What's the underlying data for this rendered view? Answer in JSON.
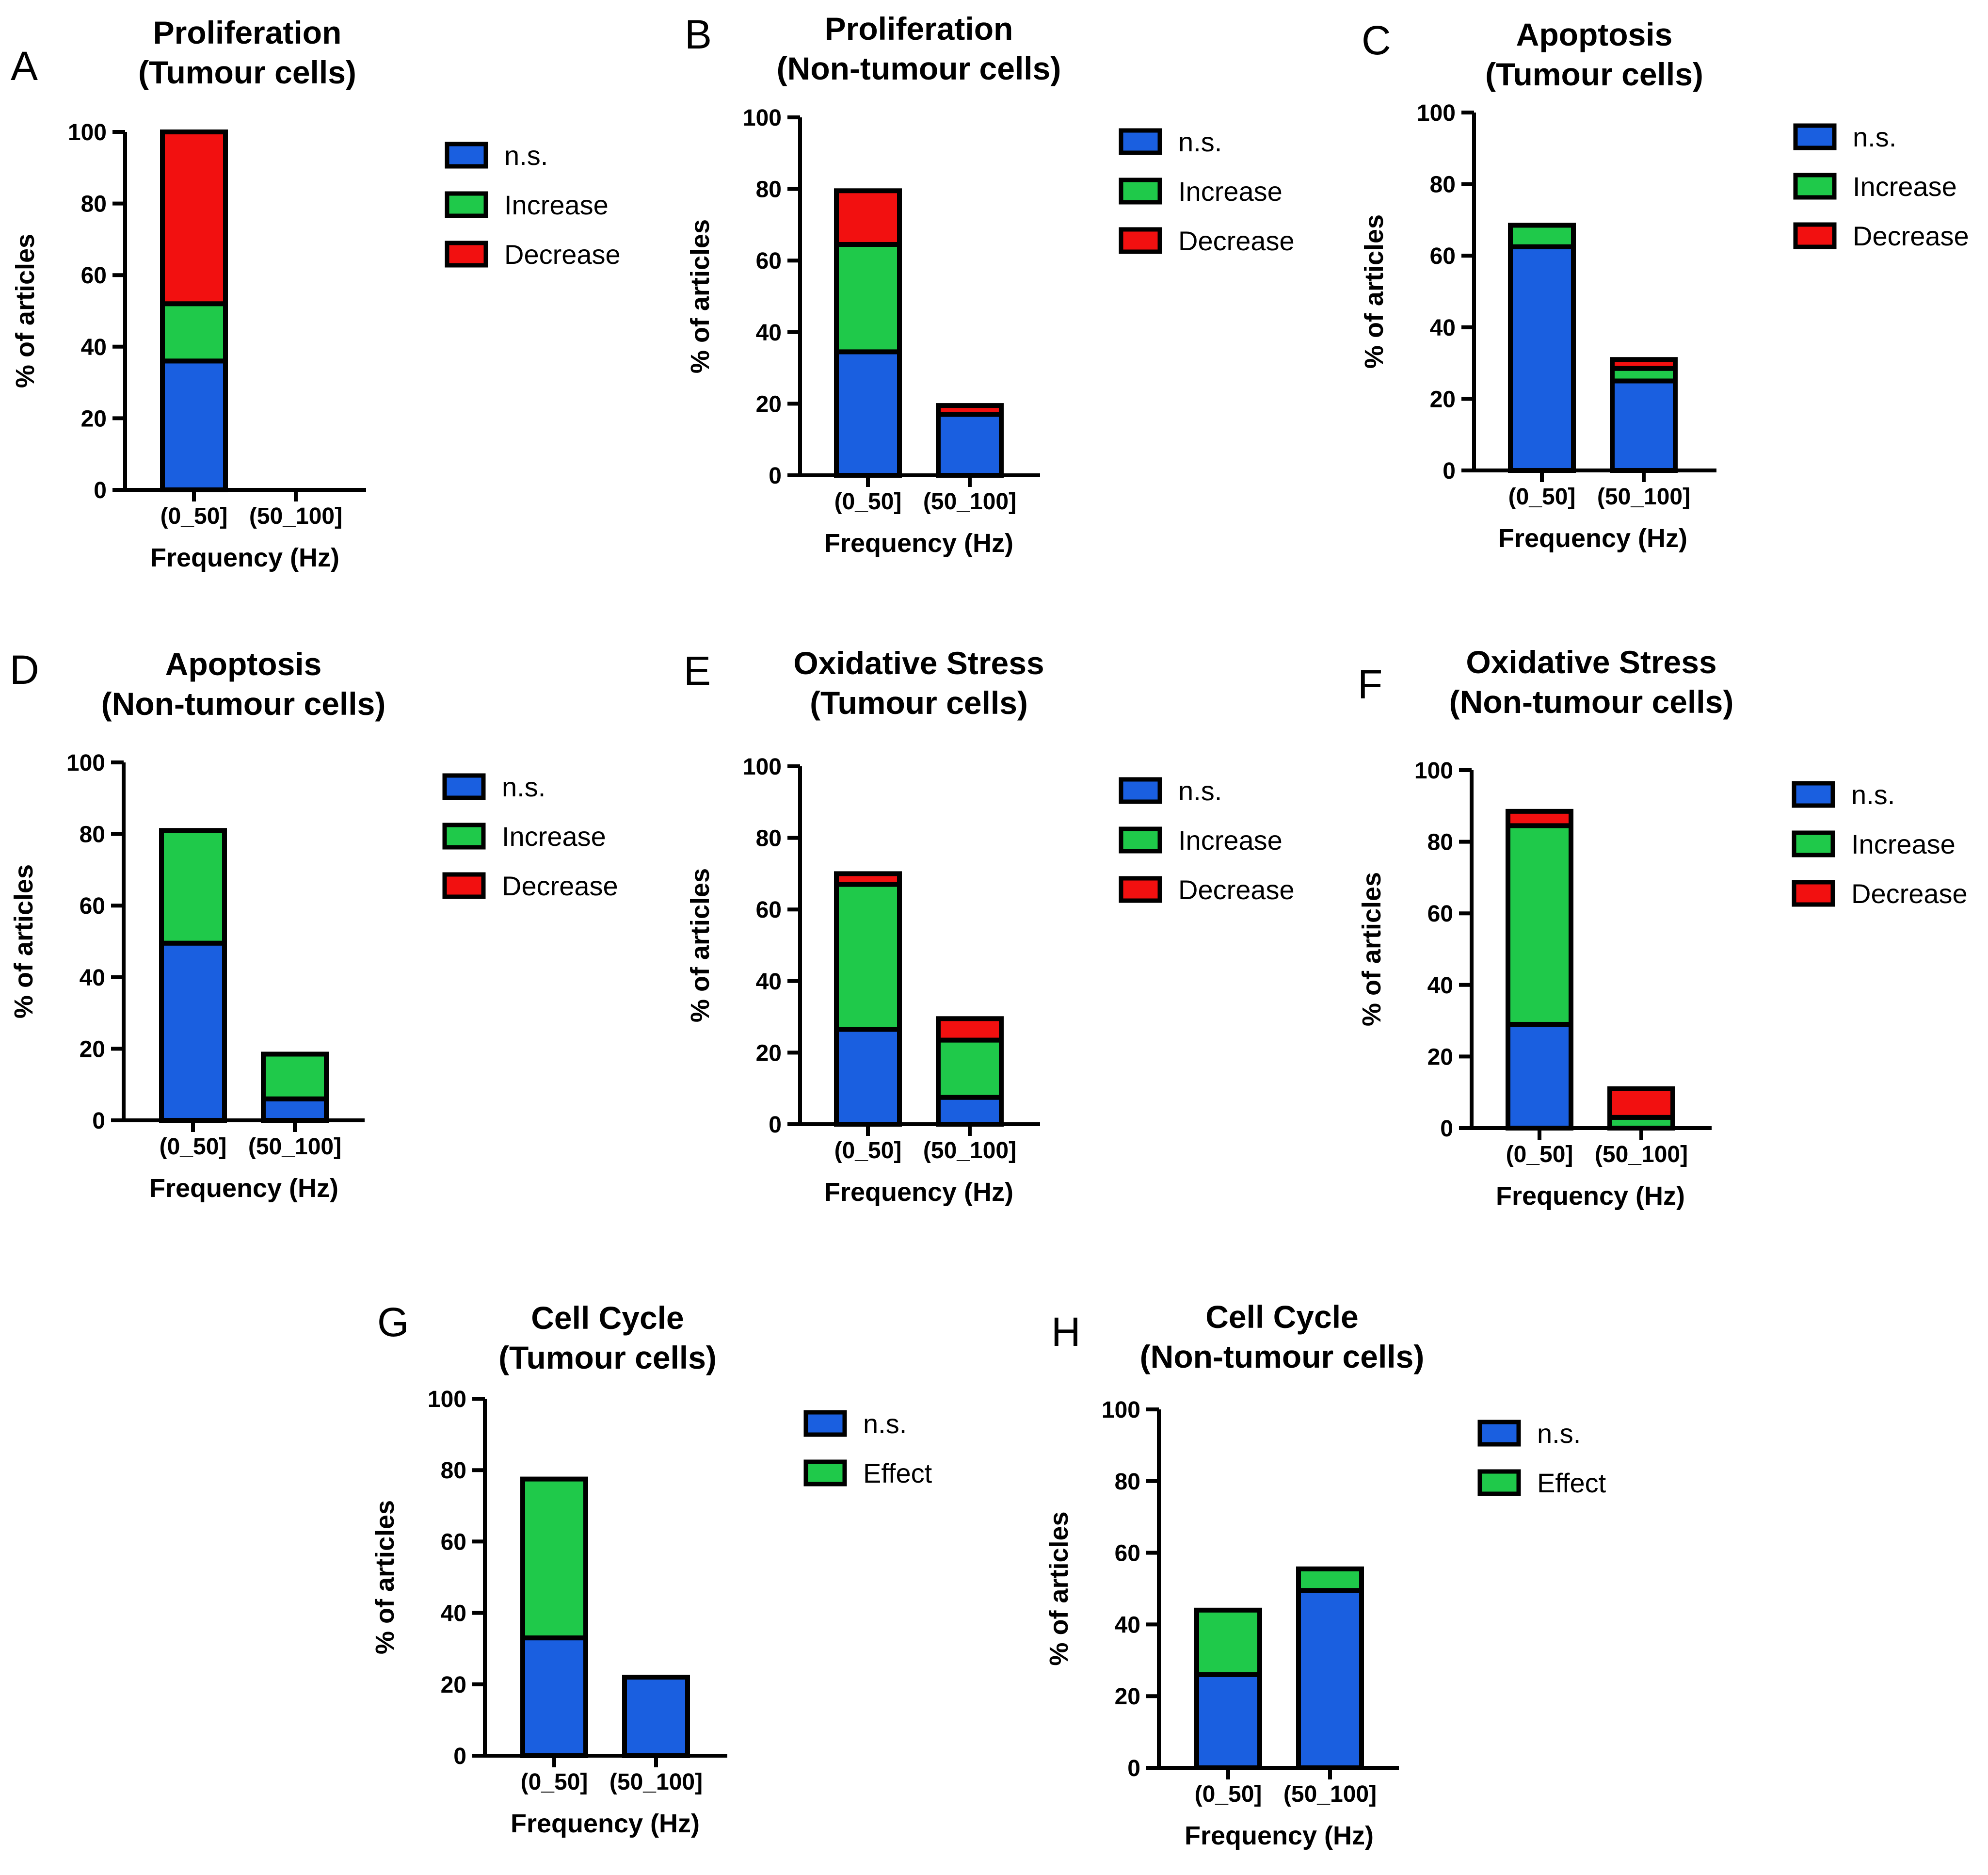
{
  "colors": {
    "ns": "#1a5fe0",
    "increase": "#1fc94a",
    "decrease": "#f21010",
    "effect": "#1fc94a"
  },
  "chart_data": [
    {
      "panel": "A",
      "type": "bar",
      "stacked": true,
      "title": [
        "Proliferation",
        "(Tumour cells)"
      ],
      "xlabel": "Frequency (Hz)",
      "ylabel": "% of articles",
      "ylim": [
        0,
        100
      ],
      "yticks": [
        0,
        20,
        40,
        60,
        80,
        100
      ],
      "categories": [
        "(0_50]",
        "(50_100]"
      ],
      "series": [
        {
          "name": "n.s.",
          "color_key": "ns",
          "values": [
            36,
            0
          ]
        },
        {
          "name": "Increase",
          "color_key": "increase",
          "values": [
            16,
            0
          ]
        },
        {
          "name": "Decrease",
          "color_key": "decrease",
          "values": [
            48,
            0
          ]
        }
      ],
      "legend": [
        "n.s.",
        "Increase",
        "Decrease"
      ],
      "legend_position": "right"
    },
    {
      "panel": "B",
      "type": "bar",
      "stacked": true,
      "title": [
        "Proliferation",
        "(Non-tumour cells)"
      ],
      "xlabel": "Frequency (Hz)",
      "ylabel": "% of articles",
      "ylim": [
        0,
        100
      ],
      "yticks": [
        0,
        20,
        40,
        60,
        80,
        100
      ],
      "categories": [
        "(0_50]",
        "(50_100]"
      ],
      "series": [
        {
          "name": "n.s.",
          "color_key": "ns",
          "values": [
            34.5,
            17
          ]
        },
        {
          "name": "Increase",
          "color_key": "increase",
          "values": [
            30,
            0
          ]
        },
        {
          "name": "Decrease",
          "color_key": "decrease",
          "values": [
            15,
            2.5
          ]
        }
      ],
      "legend": [
        "n.s.",
        "Increase",
        "Decrease"
      ],
      "legend_position": "right"
    },
    {
      "panel": "C",
      "type": "bar",
      "stacked": true,
      "title": [
        "Apoptosis",
        "(Tumour cells)"
      ],
      "xlabel": "Frequency (Hz)",
      "ylabel": "% of articles",
      "ylim": [
        0,
        100
      ],
      "yticks": [
        0,
        20,
        40,
        60,
        80,
        100
      ],
      "categories": [
        "(0_50]",
        "(50_100]"
      ],
      "series": [
        {
          "name": "n.s.",
          "color_key": "ns",
          "values": [
            62.5,
            25
          ]
        },
        {
          "name": "Increase",
          "color_key": "increase",
          "values": [
            6,
            3.5
          ]
        },
        {
          "name": "Decrease",
          "color_key": "decrease",
          "values": [
            0,
            2.5
          ]
        }
      ],
      "legend": [
        "n.s.",
        "Increase",
        "Decrease"
      ],
      "legend_position": "right"
    },
    {
      "panel": "D",
      "type": "bar",
      "stacked": true,
      "title": [
        "Apoptosis",
        "(Non-tumour cells)"
      ],
      "xlabel": "Frequency (Hz)",
      "ylabel": "% of articles",
      "ylim": [
        0,
        100
      ],
      "yticks": [
        0,
        20,
        40,
        60,
        80,
        100
      ],
      "categories": [
        "(0_50]",
        "(50_100]"
      ],
      "series": [
        {
          "name": "n.s.",
          "color_key": "ns",
          "values": [
            49.5,
            6
          ]
        },
        {
          "name": "Increase",
          "color_key": "increase",
          "values": [
            31.5,
            12.5
          ]
        },
        {
          "name": "Decrease",
          "color_key": "decrease",
          "values": [
            0,
            0
          ]
        }
      ],
      "legend": [
        "n.s.",
        "Increase",
        "Decrease"
      ],
      "legend_position": "right"
    },
    {
      "panel": "E",
      "type": "bar",
      "stacked": true,
      "title": [
        "Oxidative Stress",
        "(Tumour cells)"
      ],
      "xlabel": "Frequency (Hz)",
      "ylabel": "% of articles",
      "ylim": [
        0,
        100
      ],
      "yticks": [
        0,
        20,
        40,
        60,
        80,
        100
      ],
      "categories": [
        "(0_50]",
        "(50_100]"
      ],
      "series": [
        {
          "name": "n.s.",
          "color_key": "ns",
          "values": [
            26.5,
            7.5
          ]
        },
        {
          "name": "Increase",
          "color_key": "increase",
          "values": [
            40.5,
            16
          ]
        },
        {
          "name": "Decrease",
          "color_key": "decrease",
          "values": [
            3,
            6
          ]
        }
      ],
      "legend": [
        "n.s.",
        "Increase",
        "Decrease"
      ],
      "legend_position": "right"
    },
    {
      "panel": "F",
      "type": "bar",
      "stacked": true,
      "title": [
        "Oxidative Stress",
        "(Non-tumour cells)"
      ],
      "xlabel": "Frequency (Hz)",
      "ylabel": "% of articles",
      "ylim": [
        0,
        100
      ],
      "yticks": [
        0,
        20,
        40,
        60,
        80,
        100
      ],
      "categories": [
        "(0_50]",
        "(50_100]"
      ],
      "series": [
        {
          "name": "n.s.",
          "color_key": "ns",
          "values": [
            29,
            0
          ]
        },
        {
          "name": "Increase",
          "color_key": "increase",
          "values": [
            55.5,
            3
          ]
        },
        {
          "name": "Decrease",
          "color_key": "decrease",
          "values": [
            4,
            8
          ]
        }
      ],
      "legend": [
        "n.s.",
        "Increase",
        "Decrease"
      ],
      "legend_position": "right"
    },
    {
      "panel": "G",
      "type": "bar",
      "stacked": true,
      "title": [
        "Cell Cycle",
        "(Tumour cells)"
      ],
      "xlabel": "Frequency (Hz)",
      "ylabel": "% of articles",
      "ylim": [
        0,
        100
      ],
      "yticks": [
        0,
        20,
        40,
        60,
        80,
        100
      ],
      "categories": [
        "(0_50]",
        "(50_100]"
      ],
      "series": [
        {
          "name": "n.s.",
          "color_key": "ns",
          "values": [
            33,
            22
          ]
        },
        {
          "name": "Effect",
          "color_key": "effect",
          "values": [
            44.5,
            0
          ]
        }
      ],
      "legend": [
        "n.s.",
        "Effect"
      ],
      "legend_position": "right"
    },
    {
      "panel": "H",
      "type": "bar",
      "stacked": true,
      "title": [
        "Cell Cycle",
        "(Non-tumour cells)"
      ],
      "xlabel": "Frequency (Hz)",
      "ylabel": "% of articles",
      "ylim": [
        0,
        100
      ],
      "yticks": [
        0,
        20,
        40,
        60,
        80,
        100
      ],
      "categories": [
        "(0_50]",
        "(50_100]"
      ],
      "series": [
        {
          "name": "n.s.",
          "color_key": "ns",
          "values": [
            26,
            49.5
          ]
        },
        {
          "name": "Effect",
          "color_key": "effect",
          "values": [
            18,
            6
          ]
        }
      ],
      "legend": [
        "n.s.",
        "Effect"
      ],
      "legend_position": "right"
    }
  ]
}
